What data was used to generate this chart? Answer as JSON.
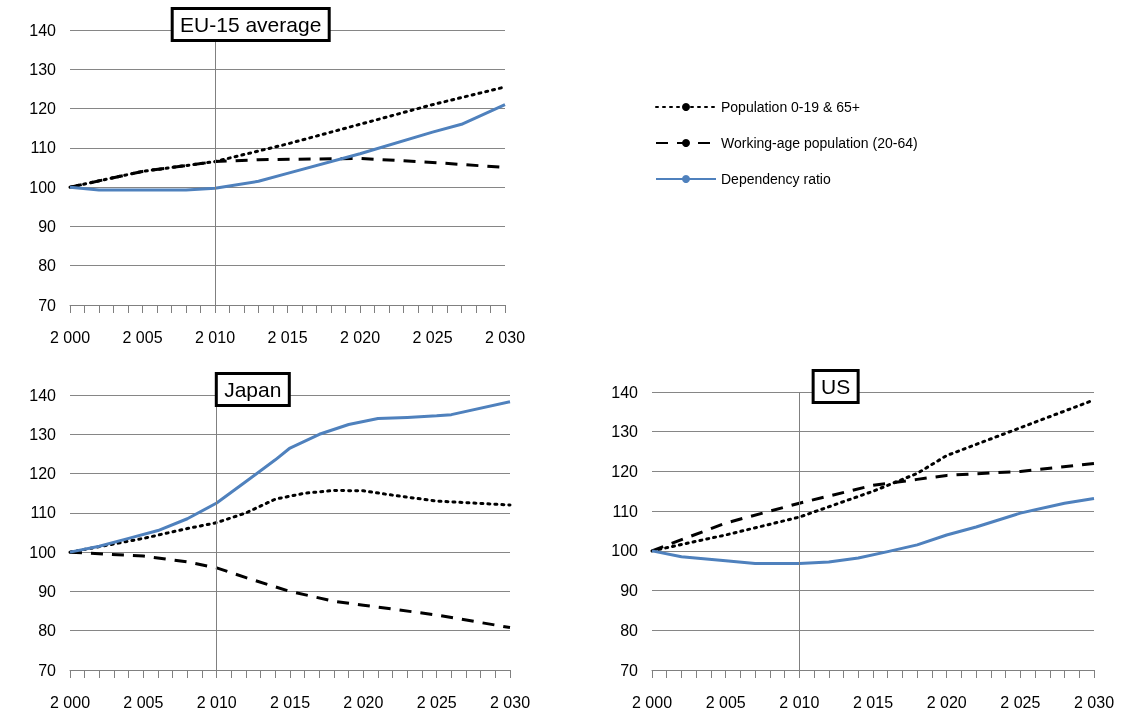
{
  "chart_data": [
    {
      "type": "line",
      "title": "EU-15 average",
      "legend": "right",
      "grid": "y",
      "xlim": [
        2000,
        2030
      ],
      "ylim": [
        70,
        140
      ],
      "yticks": [
        70,
        80,
        90,
        100,
        110,
        120,
        130,
        140
      ],
      "xticks": [
        {
          "value": 2000,
          "label": "2 000"
        },
        {
          "value": 2001,
          "label": null
        },
        {
          "value": 2002,
          "label": null
        },
        {
          "value": 2003,
          "label": null
        },
        {
          "value": 2004,
          "label": null
        },
        {
          "value": 2005,
          "label": "2 005"
        },
        {
          "value": 2006,
          "label": null
        },
        {
          "value": 2007,
          "label": null
        },
        {
          "value": 2008,
          "label": null
        },
        {
          "value": 2009,
          "label": null
        },
        {
          "value": 2010,
          "label": "2 010"
        },
        {
          "value": 2011,
          "label": null
        },
        {
          "value": 2012,
          "label": null
        },
        {
          "value": 2013,
          "label": null
        },
        {
          "value": 2014,
          "label": null
        },
        {
          "value": 2015,
          "label": "2 015"
        },
        {
          "value": 2016,
          "label": null
        },
        {
          "value": 2017,
          "label": null
        },
        {
          "value": 2018,
          "label": null
        },
        {
          "value": 2019,
          "label": null
        },
        {
          "value": 2020,
          "label": "2 020"
        },
        {
          "value": 2021,
          "label": null
        },
        {
          "value": 2022,
          "label": null
        },
        {
          "value": 2023,
          "label": null
        },
        {
          "value": 2024,
          "label": null
        },
        {
          "value": 2025,
          "label": "2 025"
        },
        {
          "value": 2026,
          "label": null
        },
        {
          "value": 2027,
          "label": null
        },
        {
          "value": 2028,
          "label": null
        },
        {
          "value": 2029,
          "label": null
        },
        {
          "value": 2030,
          "label": "2 030"
        }
      ],
      "ref_lines": [
        {
          "axis": "x",
          "value": 2010,
          "color": "#808080"
        }
      ],
      "series": [
        {
          "name": "Population 0-19 & 65+",
          "color": "#000000",
          "line_style": "dotted",
          "x": [
            2000,
            2005,
            2010,
            2015,
            2020,
            2025,
            2030
          ],
          "values": [
            100,
            104,
            106.5,
            111,
            116,
            121,
            125.5
          ]
        },
        {
          "name": "Working-age population (20-64)",
          "color": "#000000",
          "line_style": "dashed",
          "x": [
            2000,
            2005,
            2010,
            2013,
            2020,
            2025,
            2030
          ],
          "values": [
            100,
            104,
            106.5,
            107,
            107.3,
            106.3,
            105
          ]
        },
        {
          "name": "Dependency ratio",
          "color": "#4f81bd",
          "line_style": "solid",
          "x": [
            2000,
            2002,
            2008,
            2010,
            2013,
            2015,
            2020,
            2025,
            2027,
            2030
          ],
          "values": [
            100,
            99.3,
            99.3,
            99.7,
            101.5,
            103.5,
            108.5,
            114,
            116,
            121
          ]
        }
      ]
    },
    {
      "type": "line",
      "title": "Japan",
      "grid": "y",
      "xlim": [
        2000,
        2030
      ],
      "ylim": [
        70,
        140
      ],
      "yticks": [
        70,
        80,
        90,
        100,
        110,
        120,
        130,
        140
      ],
      "xticks": [
        {
          "value": 2000,
          "label": "2 000"
        },
        {
          "value": 2001,
          "label": null
        },
        {
          "value": 2002,
          "label": null
        },
        {
          "value": 2003,
          "label": null
        },
        {
          "value": 2004,
          "label": null
        },
        {
          "value": 2005,
          "label": "2 005"
        },
        {
          "value": 2006,
          "label": null
        },
        {
          "value": 2007,
          "label": null
        },
        {
          "value": 2008,
          "label": null
        },
        {
          "value": 2009,
          "label": null
        },
        {
          "value": 2010,
          "label": "2 010"
        },
        {
          "value": 2011,
          "label": null
        },
        {
          "value": 2012,
          "label": null
        },
        {
          "value": 2013,
          "label": null
        },
        {
          "value": 2014,
          "label": null
        },
        {
          "value": 2015,
          "label": "2 015"
        },
        {
          "value": 2016,
          "label": null
        },
        {
          "value": 2017,
          "label": null
        },
        {
          "value": 2018,
          "label": null
        },
        {
          "value": 2019,
          "label": null
        },
        {
          "value": 2020,
          "label": "2 020"
        },
        {
          "value": 2021,
          "label": null
        },
        {
          "value": 2022,
          "label": null
        },
        {
          "value": 2023,
          "label": null
        },
        {
          "value": 2024,
          "label": null
        },
        {
          "value": 2025,
          "label": "2 025"
        },
        {
          "value": 2026,
          "label": null
        },
        {
          "value": 2027,
          "label": null
        },
        {
          "value": 2028,
          "label": null
        },
        {
          "value": 2029,
          "label": null
        },
        {
          "value": 2030,
          "label": "2 030"
        }
      ],
      "ref_lines": [
        {
          "axis": "x",
          "value": 2010,
          "color": "#808080"
        }
      ],
      "series": [
        {
          "color": "#000000",
          "line_style": "dotted",
          "x": [
            2000,
            2005,
            2008,
            2010,
            2012,
            2014,
            2016,
            2018,
            2020,
            2022,
            2025,
            2030
          ],
          "values": [
            100,
            103.5,
            106,
            107.5,
            110,
            113.5,
            115,
            115.7,
            115.6,
            114.5,
            113,
            112
          ]
        },
        {
          "color": "#000000",
          "line_style": "dashed",
          "x": [
            2000,
            2005,
            2008,
            2010,
            2012,
            2015,
            2018,
            2020,
            2025,
            2030
          ],
          "values": [
            100,
            99,
            97.5,
            96,
            93.5,
            90,
            87.5,
            86.5,
            84,
            80.8
          ]
        },
        {
          "color": "#4f81bd",
          "line_style": "solid",
          "x": [
            2000,
            2002,
            2004,
            2006,
            2008,
            2010,
            2012,
            2014,
            2015,
            2017,
            2019,
            2021,
            2023,
            2025,
            2026,
            2030
          ],
          "values": [
            100,
            101.5,
            103.5,
            105.5,
            108.5,
            112.5,
            118,
            123.5,
            126.5,
            130,
            132.5,
            134,
            134.3,
            134.7,
            135,
            138.3
          ]
        }
      ]
    },
    {
      "type": "line",
      "title": "US",
      "grid": "y",
      "xlim": [
        2000,
        2030
      ],
      "ylim": [
        70,
        140
      ],
      "yticks": [
        70,
        80,
        90,
        100,
        110,
        120,
        130,
        140
      ],
      "xticks": [
        {
          "value": 2000,
          "label": "2 000"
        },
        {
          "value": 2001,
          "label": null
        },
        {
          "value": 2002,
          "label": null
        },
        {
          "value": 2003,
          "label": null
        },
        {
          "value": 2004,
          "label": null
        },
        {
          "value": 2005,
          "label": "2 005"
        },
        {
          "value": 2006,
          "label": null
        },
        {
          "value": 2007,
          "label": null
        },
        {
          "value": 2008,
          "label": null
        },
        {
          "value": 2009,
          "label": null
        },
        {
          "value": 2010,
          "label": "2 010"
        },
        {
          "value": 2011,
          "label": null
        },
        {
          "value": 2012,
          "label": null
        },
        {
          "value": 2013,
          "label": null
        },
        {
          "value": 2014,
          "label": null
        },
        {
          "value": 2015,
          "label": "2 015"
        },
        {
          "value": 2016,
          "label": null
        },
        {
          "value": 2017,
          "label": null
        },
        {
          "value": 2018,
          "label": null
        },
        {
          "value": 2019,
          "label": null
        },
        {
          "value": 2020,
          "label": "2 020"
        },
        {
          "value": 2021,
          "label": null
        },
        {
          "value": 2022,
          "label": null
        },
        {
          "value": 2023,
          "label": null
        },
        {
          "value": 2024,
          "label": null
        },
        {
          "value": 2025,
          "label": "2 025"
        },
        {
          "value": 2026,
          "label": null
        },
        {
          "value": 2027,
          "label": null
        },
        {
          "value": 2028,
          "label": null
        },
        {
          "value": 2029,
          "label": null
        },
        {
          "value": 2030,
          "label": "2 030"
        }
      ],
      "ref_lines": [
        {
          "axis": "x",
          "value": 2010,
          "color": "#808080"
        }
      ],
      "series": [
        {
          "color": "#000000",
          "line_style": "dotted",
          "x": [
            2000,
            2005,
            2010,
            2015,
            2018,
            2020,
            2025,
            2030
          ],
          "values": [
            100,
            104,
            108.5,
            115,
            119.5,
            124,
            131,
            138
          ]
        },
        {
          "color": "#000000",
          "line_style": "dashed",
          "x": [
            2000,
            2005,
            2010,
            2015,
            2018,
            2020,
            2025,
            2030
          ],
          "values": [
            100,
            107,
            112,
            116.5,
            118,
            119,
            120,
            122
          ]
        },
        {
          "color": "#4f81bd",
          "line_style": "solid",
          "x": [
            2000,
            2002,
            2005,
            2007,
            2010,
            2012,
            2014,
            2016,
            2018,
            2020,
            2022,
            2025,
            2028,
            2030
          ],
          "values": [
            100,
            98.5,
            97.5,
            96.8,
            96.8,
            97.2,
            98.2,
            99.8,
            101.5,
            104,
            106,
            109.5,
            112,
            113.2
          ]
        }
      ]
    }
  ]
}
